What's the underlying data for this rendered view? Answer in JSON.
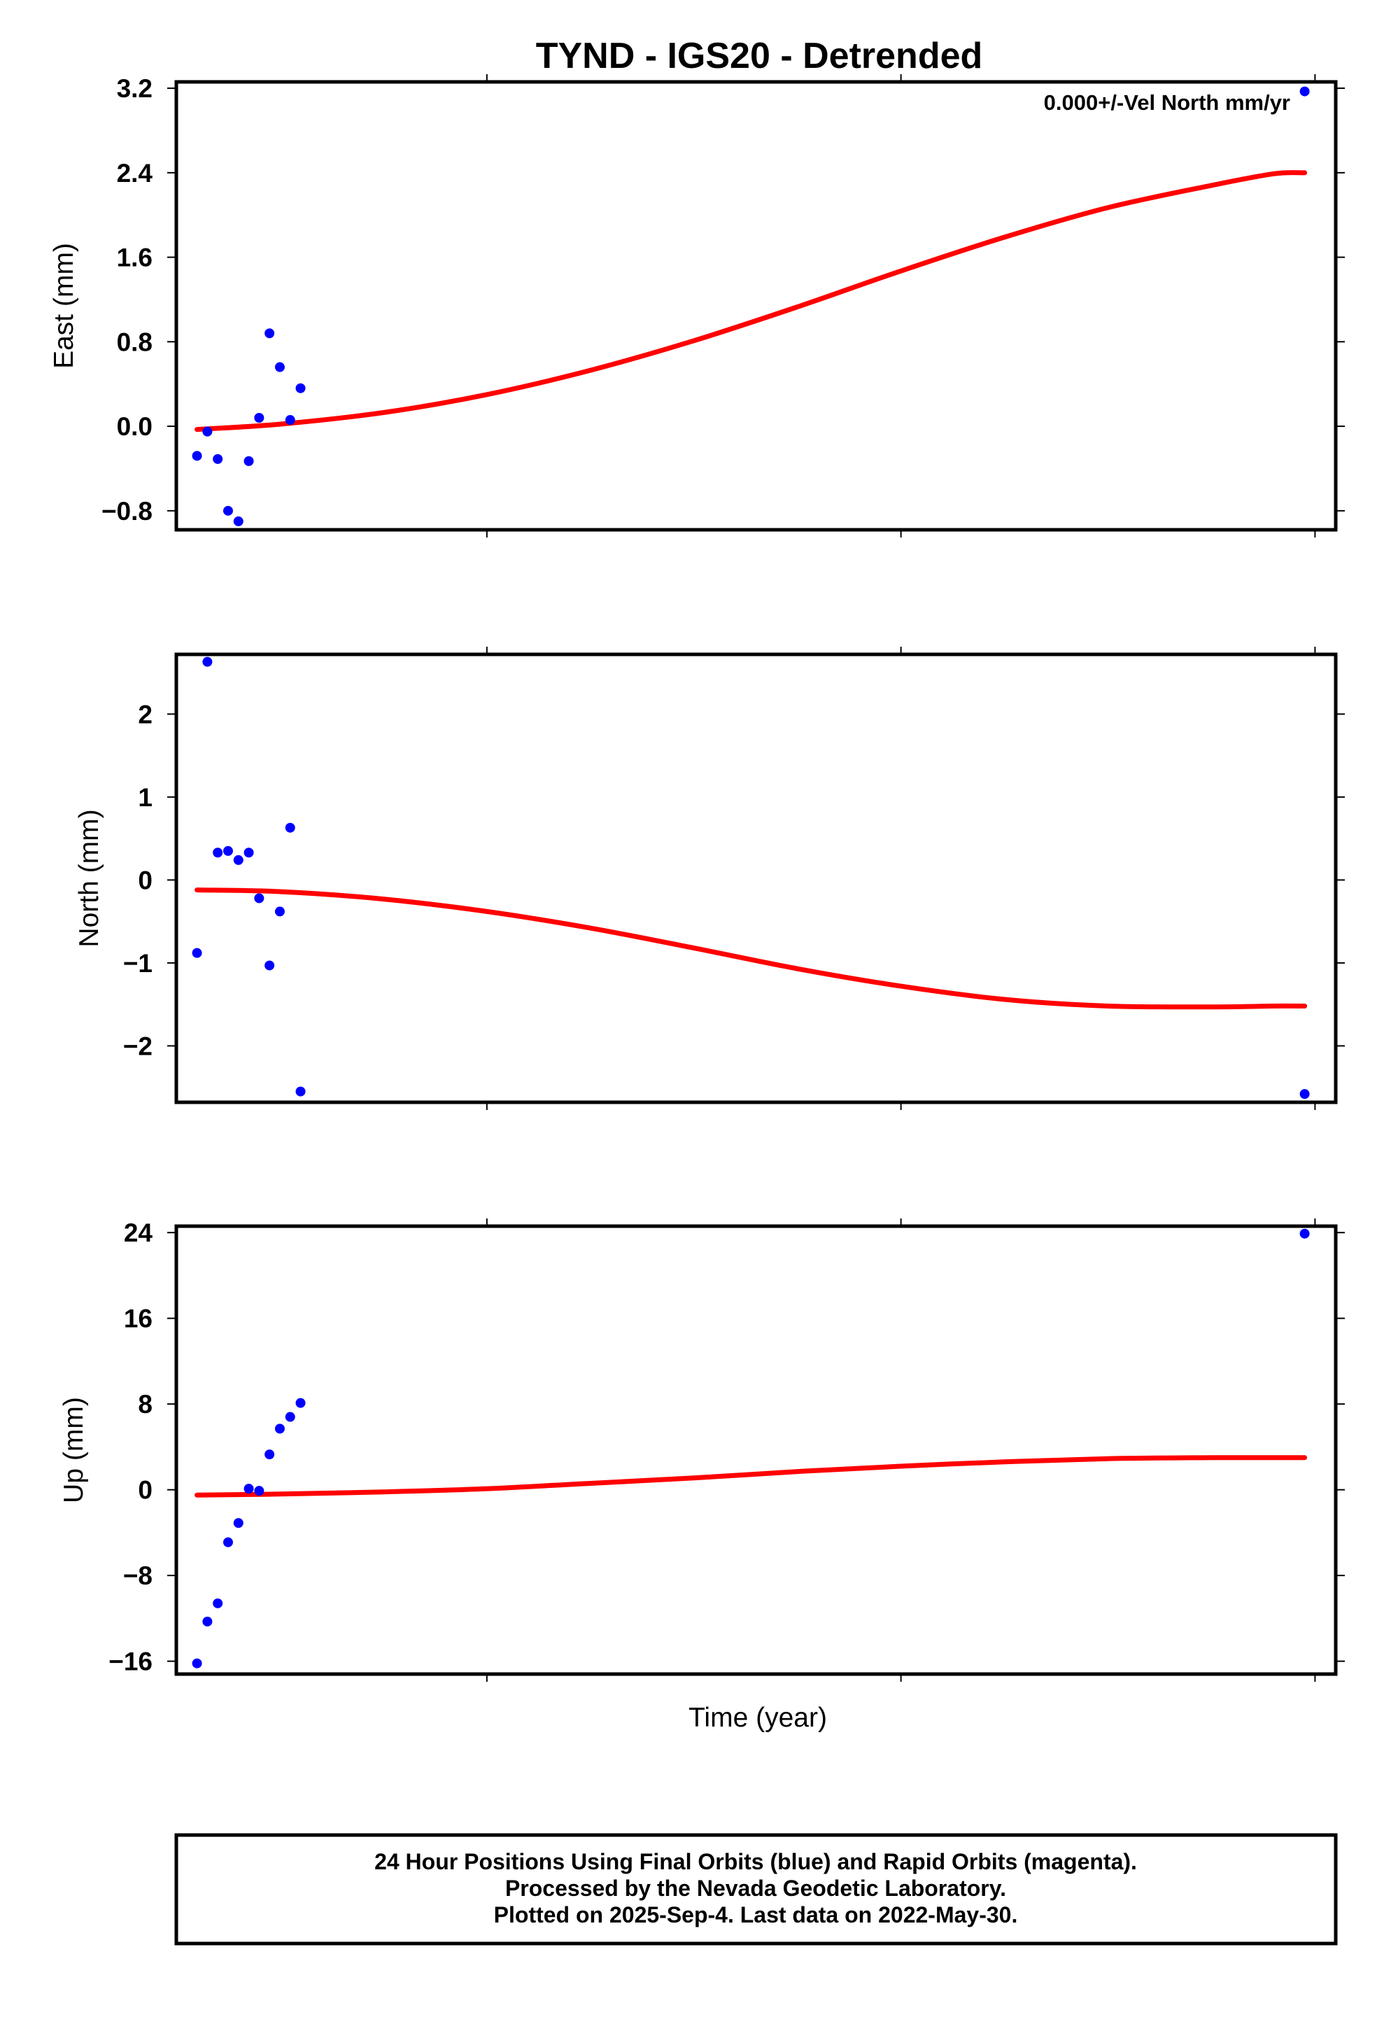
{
  "title": "TYND - IGS20 - Detrended",
  "colors": {
    "points": "#0000ff",
    "fit": "#ff0000",
    "frame": "#000000"
  },
  "chart_data": [
    {
      "type": "scatter",
      "ylabel": "East (mm)",
      "annotation": "0.000+/-Vel North mm/yr",
      "ylim": [
        -0.98,
        3.26
      ],
      "yticks": [
        -0.8,
        0.0,
        0.8,
        1.6,
        2.4,
        3.2
      ],
      "ytick_labels": [
        "−0.8",
        "0.0",
        "0.8",
        "1.6",
        "2.4",
        "3.2"
      ],
      "points": [
        [
          0.02,
          -0.28
        ],
        [
          0.03,
          -0.05
        ],
        [
          0.04,
          -0.31
        ],
        [
          0.05,
          -0.8
        ],
        [
          0.06,
          -0.9
        ],
        [
          0.07,
          -0.33
        ],
        [
          0.08,
          0.08
        ],
        [
          0.09,
          0.88
        ],
        [
          0.1,
          0.56
        ],
        [
          0.11,
          0.06
        ],
        [
          0.12,
          0.36
        ],
        [
          1.09,
          3.17
        ]
      ],
      "fit": [
        [
          0.02,
          -0.03
        ],
        [
          0.1,
          0.02
        ],
        [
          0.2,
          0.13
        ],
        [
          0.3,
          0.3
        ],
        [
          0.4,
          0.53
        ],
        [
          0.5,
          0.81
        ],
        [
          0.6,
          1.13
        ],
        [
          0.7,
          1.47
        ],
        [
          0.8,
          1.79
        ],
        [
          0.9,
          2.07
        ],
        [
          1.0,
          2.28
        ],
        [
          1.06,
          2.39
        ],
        [
          1.09,
          2.4
        ]
      ]
    },
    {
      "type": "scatter",
      "ylabel": "North (mm)",
      "ylim": [
        -2.68,
        2.72
      ],
      "yticks": [
        -2,
        -1,
        0,
        1,
        2
      ],
      "ytick_labels": [
        "−2",
        "−1",
        "0",
        "1",
        "2"
      ],
      "points": [
        [
          0.02,
          -0.88
        ],
        [
          0.03,
          2.63
        ],
        [
          0.04,
          0.33
        ],
        [
          0.05,
          0.35
        ],
        [
          0.06,
          0.24
        ],
        [
          0.07,
          0.33
        ],
        [
          0.08,
          -0.22
        ],
        [
          0.09,
          -1.03
        ],
        [
          0.1,
          -0.38
        ],
        [
          0.11,
          0.63
        ],
        [
          0.12,
          -2.55
        ],
        [
          1.09,
          -2.58
        ]
      ],
      "fit": [
        [
          0.02,
          -0.12
        ],
        [
          0.1,
          -0.14
        ],
        [
          0.2,
          -0.23
        ],
        [
          0.3,
          -0.38
        ],
        [
          0.4,
          -0.58
        ],
        [
          0.5,
          -0.82
        ],
        [
          0.6,
          -1.07
        ],
        [
          0.7,
          -1.28
        ],
        [
          0.8,
          -1.44
        ],
        [
          0.9,
          -1.52
        ],
        [
          1.0,
          -1.53
        ],
        [
          1.06,
          -1.52
        ],
        [
          1.09,
          -1.52
        ]
      ]
    },
    {
      "type": "scatter",
      "ylabel": "Up (mm)",
      "xlabel": "Time (year)",
      "ylim": [
        -17.2,
        24.6
      ],
      "yticks": [
        -16,
        -8,
        0,
        8,
        16,
        24
      ],
      "ytick_labels": [
        "−16",
        "−8",
        "0",
        "8",
        "16",
        "24"
      ],
      "points": [
        [
          0.02,
          -16.2
        ],
        [
          0.03,
          -12.3
        ],
        [
          0.04,
          -10.6
        ],
        [
          0.05,
          -4.9
        ],
        [
          0.06,
          -3.1
        ],
        [
          0.07,
          0.1
        ],
        [
          0.08,
          -0.1
        ],
        [
          0.09,
          3.3
        ],
        [
          0.1,
          5.7
        ],
        [
          0.11,
          6.8
        ],
        [
          0.12,
          8.1
        ],
        [
          1.09,
          23.9
        ]
      ],
      "fit": [
        [
          0.02,
          -0.5
        ],
        [
          0.1,
          -0.4
        ],
        [
          0.2,
          -0.2
        ],
        [
          0.3,
          0.1
        ],
        [
          0.4,
          0.6
        ],
        [
          0.5,
          1.1
        ],
        [
          0.6,
          1.7
        ],
        [
          0.7,
          2.2
        ],
        [
          0.8,
          2.6
        ],
        [
          0.9,
          2.9
        ],
        [
          1.0,
          3.0
        ],
        [
          1.06,
          3.0
        ],
        [
          1.09,
          3.0
        ]
      ]
    }
  ],
  "footer": {
    "line1": "24 Hour Positions Using Final Orbits (blue) and Rapid Orbits (magenta).",
    "line2": "Processed by the Nevada Geodetic Laboratory.",
    "line3": "Plotted on 2025-Sep-4. Last data on 2022-May-30."
  }
}
